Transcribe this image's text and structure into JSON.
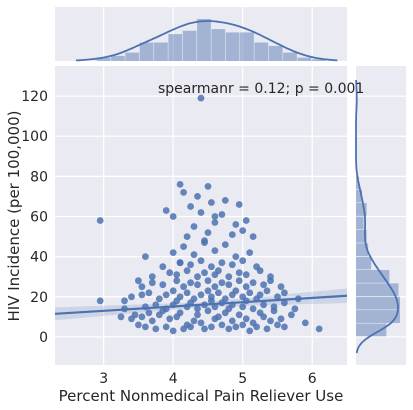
{
  "chart_data": {
    "type": "scatter",
    "title": "",
    "xlabel": "Percent Nonmedical Pain Reliever Use",
    "ylabel": "HIV Incidence (per 100,000)",
    "xlim": [
      2.3,
      6.5
    ],
    "ylim": [
      -14,
      135
    ],
    "x_ticks": [
      3,
      4,
      5,
      6
    ],
    "y_ticks": [
      0,
      20,
      40,
      60,
      80,
      100,
      120
    ],
    "annotation": "spearmanr = 0.12; p = 0.001",
    "grid": true,
    "colors": {
      "points": "#4c72b0",
      "panel": "#eaeaf2",
      "grid": "#ffffff"
    },
    "regression": {
      "x": [
        2.3,
        6.5
      ],
      "y": [
        11.5,
        20.5
      ]
    },
    "points": {
      "x": [
        2.95,
        3.5,
        3.6,
        3.75,
        3.9,
        4.0,
        4.15,
        4.2,
        4.25,
        4.4,
        4.45,
        4.55,
        4.7,
        4.8,
        4.9,
        5.0,
        5.1,
        5.15,
        5.2,
        5.35,
        5.5,
        5.6,
        3.3,
        3.45,
        3.5,
        4.45,
        4.1,
        3.4,
        3.55,
        3.65,
        3.7,
        3.8,
        3.85,
        3.95,
        4.05,
        4.1,
        4.3,
        4.35,
        4.5,
        4.6,
        4.65,
        4.75,
        4.85,
        4.95,
        5.05,
        5.25,
        5.3,
        5.4,
        5.45,
        5.55,
        5.7,
        5.9,
        6.1,
        2.95,
        3.25,
        3.3,
        3.6,
        3.75,
        3.9,
        4.0,
        4.05,
        4.2,
        4.25,
        4.35,
        4.45,
        4.55,
        4.6,
        4.7,
        4.8,
        4.85,
        5.0,
        5.05,
        5.15,
        5.3,
        5.45,
        5.6,
        5.75,
        3.4,
        3.55,
        3.65,
        3.8,
        3.9,
        4.0,
        4.1,
        4.2,
        4.3,
        4.4,
        4.5,
        4.55,
        4.65,
        4.75,
        4.85,
        4.9,
        5.0,
        5.1,
        5.2,
        5.25,
        5.35,
        5.5,
        5.6,
        5.8,
        3.55,
        3.7,
        3.85,
        4.05,
        4.15,
        4.25,
        4.35,
        4.5,
        4.6,
        4.7,
        4.8,
        4.95,
        5.05,
        5.15,
        5.3,
        5.4,
        5.55,
        3.7,
        3.95,
        4.05,
        4.2,
        4.35,
        4.45,
        4.6,
        4.65,
        4.8,
        4.95,
        5.05,
        5.25,
        5.4,
        3.85,
        4.1,
        4.25,
        4.4,
        4.55,
        4.7,
        4.85,
        5.0,
        5.2,
        3.6,
        4.0,
        4.3,
        4.6,
        4.9,
        5.1,
        4.15,
        4.45,
        4.75,
        4.2,
        4.5,
        4.85,
        5.0,
        5.15,
        4.3,
        4.6,
        4.9,
        5.05,
        4.0,
        4.4,
        4.7,
        4.25,
        4.55,
        4.95,
        4.35,
        4.15,
        4.5,
        4.1,
        4.75,
        3.9,
        4.6,
        4.4
      ],
      "y": [
        58,
        6,
        5,
        4,
        5,
        3,
        4,
        6,
        5,
        7,
        4,
        5,
        6,
        4,
        5,
        6,
        3,
        7,
        5,
        4,
        6,
        5,
        18,
        11,
        28,
        48,
        37,
        9,
        10,
        12,
        8,
        11,
        13,
        9,
        10,
        12,
        8,
        11,
        13,
        9,
        10,
        12,
        8,
        11,
        9,
        12,
        10,
        8,
        13,
        9,
        11,
        7,
        4,
        18,
        10,
        14,
        15,
        16,
        14,
        16,
        18,
        15,
        17,
        14,
        16,
        18,
        15,
        17,
        14,
        16,
        15,
        18,
        14,
        16,
        15,
        17,
        14,
        20,
        21,
        22,
        19,
        21,
        23,
        20,
        22,
        19,
        21,
        23,
        20,
        22,
        19,
        21,
        23,
        20,
        22,
        19,
        21,
        23,
        20,
        22,
        19,
        25,
        27,
        26,
        28,
        25,
        27,
        26,
        28,
        25,
        27,
        26,
        28,
        25,
        27,
        26,
        28,
        25,
        30,
        32,
        31,
        33,
        30,
        32,
        31,
        33,
        30,
        32,
        31,
        33,
        30,
        35,
        37,
        36,
        38,
        35,
        37,
        36,
        38,
        35,
        40,
        42,
        41,
        43,
        40,
        42,
        45,
        47,
        46,
        50,
        52,
        51,
        53,
        50,
        55,
        57,
        56,
        58,
        60,
        62,
        61,
        65,
        67,
        66,
        70,
        72,
        75,
        76,
        68,
        63,
        60,
        119
      ]
    }
  }
}
